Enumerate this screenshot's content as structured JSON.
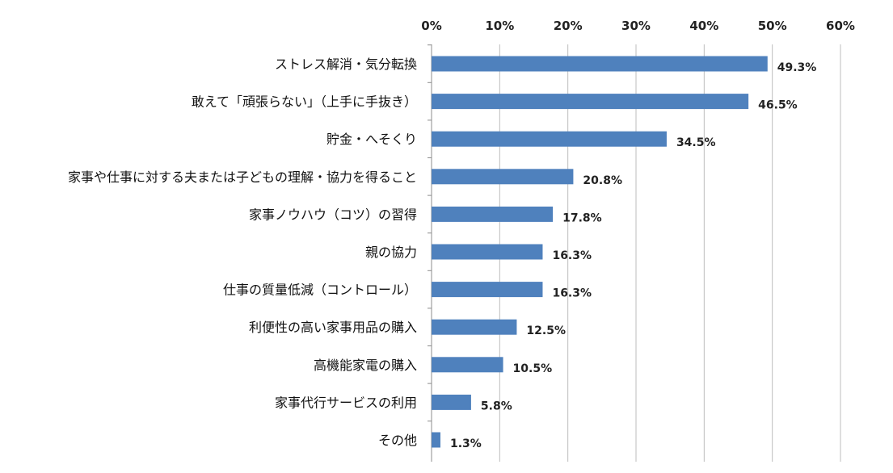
{
  "chart_data": {
    "type": "bar",
    "orientation": "horizontal",
    "title": "",
    "xlabel": "",
    "ylabel": "",
    "xlim": [
      0,
      60
    ],
    "x_ticks": [
      0,
      10,
      20,
      30,
      40,
      50,
      60
    ],
    "x_tick_labels": [
      "0%",
      "10%",
      "20%",
      "30%",
      "40%",
      "50%",
      "60%"
    ],
    "x_axis_position": "top",
    "grid": true,
    "bar_color": "#4f81bd",
    "categories": [
      "ストレス解消・気分転換",
      "敢えて「頑張らない」（上手に手抜き）",
      "貯金・へそくり",
      "家事や仕事に対する夫または子どもの理解・協力を得ること",
      "家事ノウハウ（コツ）の習得",
      "親の協力",
      "仕事の質量低減（コントロール）",
      "利便性の高い家事用品の購入",
      "高機能家電の購入",
      "家事代行サービスの利用",
      "その他"
    ],
    "values": [
      49.3,
      46.5,
      34.5,
      20.8,
      17.8,
      16.3,
      16.3,
      12.5,
      10.5,
      5.8,
      1.3
    ],
    "data_labels": [
      "49.3%",
      "46.5%",
      "34.5%",
      "20.8%",
      "17.8%",
      "16.3%",
      "16.3%",
      "12.5%",
      "10.5%",
      "5.8%",
      "1.3%"
    ]
  }
}
